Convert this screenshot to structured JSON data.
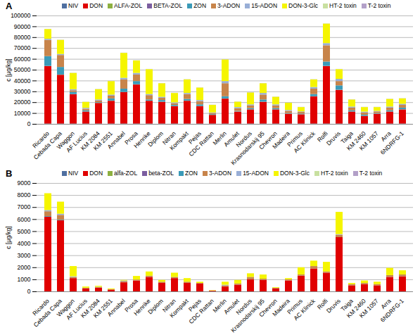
{
  "chart_data": [
    {
      "type": "bar",
      "title": "A",
      "stacked": true,
      "grid": true,
      "legend": "top",
      "y_label": "c [µg/kg]",
      "ylim": [
        0,
        100000
      ],
      "yticks": [
        0,
        10000,
        20000,
        30000,
        40000,
        50000,
        60000,
        70000,
        80000,
        90000,
        100000
      ],
      "categories": [
        "Ricardo",
        "Cebada Capa",
        "Waggon",
        "AF Lucius",
        "KM 2084",
        "KM 2551",
        "Annabel",
        "Prosa",
        "Henrike",
        "Diplom",
        "Nitran",
        "Kompakt",
        "Pejas",
        "CDC Rattan",
        "Merlin",
        "Amulet",
        "Nordus",
        "Krasnodarskij 95",
        "Chevron",
        "Madeira",
        "Primus",
        "AC Klinick",
        "Rolfi",
        "Druvis",
        "Taiga",
        "KM 2460",
        "KM 1057",
        "Arra",
        "6NDRFG-1"
      ],
      "series": [
        {
          "name": "NIV",
          "color": "#4f6fa0",
          "values": [
            300,
            300,
            300,
            300,
            300,
            300,
            300,
            300,
            300,
            300,
            300,
            300,
            300,
            300,
            300,
            300,
            300,
            300,
            300,
            300,
            300,
            300,
            300,
            300,
            300,
            300,
            300,
            300,
            300
          ]
        },
        {
          "name": "DON",
          "color": "#e00000",
          "values": [
            53000,
            45000,
            27000,
            11000,
            19000,
            21000,
            29000,
            36000,
            21000,
            20000,
            16000,
            21000,
            16000,
            8000,
            23000,
            11000,
            13000,
            20000,
            13000,
            9000,
            8500,
            25000,
            53000,
            31000,
            11000,
            7000,
            9000,
            11000,
            13000
          ]
        },
        {
          "name": "ALFA-ZOL",
          "color": "#8db040",
          "values": [
            100,
            100,
            100,
            100,
            100,
            100,
            100,
            100,
            100,
            100,
            100,
            100,
            100,
            100,
            100,
            100,
            100,
            100,
            100,
            100,
            100,
            100,
            100,
            100,
            100,
            100,
            100,
            100,
            100
          ]
        },
        {
          "name": "BETA-ZOL",
          "color": "#7b5ea0",
          "values": [
            100,
            100,
            100,
            100,
            100,
            100,
            100,
            100,
            100,
            100,
            100,
            100,
            100,
            100,
            100,
            100,
            100,
            100,
            100,
            100,
            100,
            100,
            100,
            100,
            100,
            100,
            100,
            100,
            100
          ]
        },
        {
          "name": "ZON",
          "color": "#3a9ab8",
          "values": [
            9000,
            7000,
            2000,
            1000,
            500,
            2000,
            3000,
            3000,
            1000,
            1500,
            1000,
            1500,
            1500,
            500,
            2000,
            500,
            1000,
            2000,
            1000,
            500,
            500,
            2000,
            4000,
            4000,
            1000,
            1000,
            500,
            1000,
            1500
          ]
        },
        {
          "name": "3-ADON",
          "color": "#c8844a",
          "values": [
            15000,
            11000,
            1500,
            1500,
            1500,
            2500,
            8500,
            6000,
            4000,
            2000,
            1500,
            4500,
            3000,
            1000,
            12000,
            2500,
            2500,
            4500,
            2500,
            2000,
            1500,
            5000,
            15000,
            4000,
            2500,
            2000,
            1500,
            2500,
            2500
          ]
        },
        {
          "name": "15-ADON",
          "color": "#98aed6",
          "values": [
            1000,
            1000,
            1000,
            800,
            1000,
            1000,
            1500,
            1500,
            1000,
            1000,
            800,
            1000,
            1000,
            500,
            2000,
            1000,
            1000,
            1500,
            1000,
            800,
            500,
            1500,
            2000,
            2000,
            1000,
            800,
            500,
            1000,
            1000
          ]
        },
        {
          "name": "DON-3-Glc",
          "color": "#f5f500",
          "values": [
            9000,
            13000,
            15000,
            5500,
            9500,
            12500,
            23000,
            11500,
            23000,
            12500,
            8700,
            12500,
            11500,
            7000,
            20000,
            5000,
            11000,
            9000,
            7000,
            6700,
            4000,
            7000,
            18000,
            9000,
            6500,
            4200,
            3500,
            7000,
            5000
          ]
        },
        {
          "name": "HT-2 toxin",
          "color": "#c8e0a0",
          "values": [
            100,
            100,
            100,
            100,
            100,
            100,
            100,
            100,
            100,
            100,
            100,
            100,
            100,
            100,
            100,
            100,
            100,
            100,
            100,
            100,
            100,
            100,
            100,
            100,
            100,
            100,
            100,
            100,
            100
          ]
        },
        {
          "name": "T-2 toxin",
          "color": "#b3a0c8",
          "values": [
            100,
            100,
            100,
            100,
            100,
            100,
            100,
            100,
            100,
            100,
            100,
            100,
            100,
            100,
            100,
            100,
            100,
            100,
            100,
            100,
            100,
            100,
            100,
            100,
            100,
            100,
            100,
            100,
            100
          ]
        }
      ]
    },
    {
      "type": "bar",
      "title": "B",
      "stacked": true,
      "grid": true,
      "legend": "top",
      "y_label": "c [µg/kg]",
      "ylim": [
        0,
        9000
      ],
      "yticks": [
        0,
        1000,
        2000,
        3000,
        4000,
        5000,
        6000,
        7000,
        8000,
        9000
      ],
      "categories": [
        "Ricardo",
        "Cebada Capa",
        "Waggon",
        "AF Lucius",
        "KM 2084",
        "KM 2551",
        "Annabel",
        "Prosa",
        "Henrike",
        "Diplom",
        "Nitran",
        "Kompakt",
        "Pejas",
        "CDC Rattan",
        "Merlin",
        "Amulet",
        "Nordus",
        "Krasnodarskij 95",
        "Chevron",
        "Madeira",
        "Primus",
        "AC Klinick",
        "Rolfi",
        "Druvis",
        "Taiga",
        "KM 2460",
        "KM 1057",
        "Arra",
        "6NDRFG-1"
      ],
      "series": [
        {
          "name": "NIV",
          "color": "#4f6fa0",
          "values": [
            0,
            0,
            0,
            0,
            0,
            0,
            0,
            0,
            0,
            0,
            0,
            0,
            0,
            0,
            0,
            0,
            0,
            0,
            0,
            0,
            0,
            0,
            0,
            0,
            0,
            0,
            0,
            0,
            0
          ]
        },
        {
          "name": "DON",
          "color": "#e00000",
          "values": [
            6200,
            5900,
            1100,
            250,
            300,
            150,
            750,
            900,
            1200,
            700,
            1100,
            700,
            650,
            50,
            400,
            550,
            1000,
            950,
            250,
            900,
            1300,
            1900,
            1550,
            4500,
            500,
            600,
            500,
            1200,
            1250
          ]
        },
        {
          "name": "alfa-ZOL",
          "color": "#8db040",
          "values": [
            0,
            0,
            0,
            0,
            0,
            0,
            0,
            0,
            0,
            0,
            0,
            0,
            0,
            0,
            0,
            0,
            0,
            0,
            0,
            0,
            0,
            0,
            0,
            0,
            0,
            0,
            0,
            0,
            0
          ]
        },
        {
          "name": "beta-ZOL",
          "color": "#7b5ea0",
          "values": [
            0,
            0,
            0,
            0,
            0,
            0,
            0,
            0,
            0,
            0,
            0,
            0,
            0,
            0,
            0,
            0,
            0,
            0,
            0,
            0,
            0,
            0,
            0,
            0,
            0,
            0,
            0,
            0,
            0
          ]
        },
        {
          "name": "ZON",
          "color": "#3a9ab8",
          "values": [
            50,
            50,
            0,
            0,
            0,
            0,
            0,
            0,
            0,
            0,
            0,
            0,
            0,
            0,
            0,
            0,
            0,
            0,
            0,
            0,
            0,
            0,
            0,
            0,
            0,
            0,
            0,
            0,
            0
          ]
        },
        {
          "name": "3-ADON",
          "color": "#c8844a",
          "values": [
            400,
            400,
            100,
            50,
            50,
            30,
            100,
            80,
            100,
            100,
            100,
            100,
            50,
            20,
            100,
            100,
            200,
            100,
            50,
            100,
            100,
            200,
            100,
            200,
            100,
            100,
            100,
            150,
            150
          ]
        },
        {
          "name": "15-ADON",
          "color": "#98aed6",
          "values": [
            100,
            100,
            50,
            0,
            30,
            0,
            50,
            0,
            0,
            0,
            0,
            0,
            0,
            0,
            50,
            0,
            0,
            0,
            0,
            0,
            0,
            0,
            0,
            50,
            0,
            0,
            0,
            0,
            0
          ]
        },
        {
          "name": "DON-3-Glc",
          "color": "#f5f500",
          "values": [
            1400,
            1000,
            850,
            100,
            80,
            60,
            50,
            300,
            350,
            150,
            350,
            300,
            100,
            30,
            250,
            300,
            300,
            350,
            50,
            100,
            600,
            450,
            800,
            1850,
            100,
            200,
            200,
            600,
            350
          ]
        },
        {
          "name": "HT-2 toxin",
          "color": "#c8e0a0",
          "values": [
            0,
            0,
            0,
            0,
            0,
            0,
            0,
            0,
            0,
            0,
            0,
            0,
            0,
            0,
            0,
            0,
            0,
            0,
            0,
            0,
            0,
            0,
            0,
            0,
            0,
            0,
            0,
            0,
            0
          ]
        },
        {
          "name": "T-2 toxin",
          "color": "#b3a0c8",
          "values": [
            0,
            0,
            0,
            0,
            0,
            0,
            0,
            0,
            0,
            0,
            0,
            0,
            0,
            0,
            0,
            0,
            0,
            0,
            0,
            0,
            0,
            0,
            0,
            0,
            0,
            0,
            0,
            0,
            0
          ]
        }
      ]
    }
  ]
}
